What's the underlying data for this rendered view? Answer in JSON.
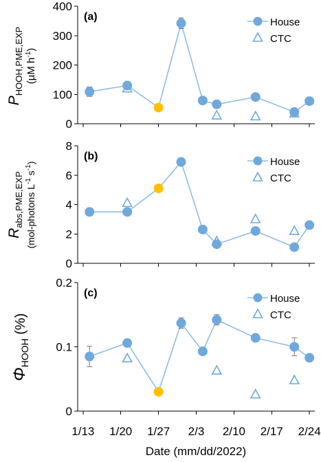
{
  "chart_data": [
    {
      "panel": "(a)",
      "type": "line",
      "ylabel": {
        "sym": "P",
        "sub": "HOOH,PME,EXP",
        "unit_a": "(µM h",
        "unit_sup": "-1",
        "unit_b": ")"
      },
      "ylim": [
        0,
        400
      ],
      "yticks": [
        "0",
        "100",
        "200",
        "300",
        "400"
      ],
      "legend": {
        "house": "House",
        "ctc": "CTC"
      },
      "house": {
        "x": [
          14.2,
          21.2,
          27.0,
          31.2,
          35.2,
          37.8,
          45.0,
          52.2,
          55.0
        ],
        "y": [
          109,
          130,
          55,
          342,
          79,
          66,
          91,
          40,
          77
        ],
        "err": [
          16,
          10,
          0,
          18,
          8,
          6,
          6,
          10,
          4
        ]
      },
      "ctc": {
        "x": [
          21.2,
          37.8,
          45.0,
          52.2
        ],
        "y": [
          120,
          28,
          25,
          35
        ]
      },
      "highlight": {
        "x": 27.0,
        "y": 55
      },
      "colors": {
        "house": "#6fa8dc",
        "line": "#8fbce8",
        "highlight": "#ffc000"
      }
    },
    {
      "panel": "(b)",
      "type": "line",
      "ylabel": {
        "sym": "R",
        "sub": "abs,PME,EXP",
        "unit_a": "(mol-photons L",
        "unit_sup1": "-1",
        "unit_mid": " s",
        "unit_sup2": "-1",
        "unit_b": ")"
      },
      "ylim": [
        0,
        8
      ],
      "yticks": [
        "0",
        "2",
        "4",
        "6",
        "8"
      ],
      "legend": {
        "house": "House",
        "ctc": "CTC"
      },
      "house": {
        "x": [
          14.2,
          21.2,
          27.0,
          31.2,
          35.2,
          37.8,
          45.0,
          52.2,
          55.0
        ],
        "y": [
          3.5,
          3.5,
          5.1,
          6.9,
          2.3,
          1.3,
          2.2,
          1.1,
          2.6
        ],
        "err": [
          0,
          0,
          0,
          0,
          0,
          0,
          0,
          0,
          0
        ]
      },
      "ctc": {
        "x": [
          21.2,
          37.8,
          45.0,
          52.2
        ],
        "y": [
          4.1,
          1.5,
          3.0,
          2.2
        ]
      },
      "highlight": {
        "x": 27.0,
        "y": 5.1
      },
      "colors": {
        "house": "#6fa8dc",
        "line": "#8fbce8",
        "highlight": "#ffc000"
      }
    },
    {
      "panel": "(c)",
      "type": "line",
      "ylabel": {
        "sym": "Φ",
        "sub": "HOOH",
        "unit_a": " (%)"
      },
      "ylim": [
        0,
        0.2
      ],
      "yticks": [
        "0",
        "0.1",
        "0.2"
      ],
      "legend": {
        "house": "House",
        "ctc": "CTC"
      },
      "house": {
        "x": [
          14.2,
          21.2,
          27.0,
          31.2,
          35.2,
          37.8,
          45.0,
          52.2,
          55.0
        ],
        "y": [
          0.085,
          0.106,
          0.03,
          0.137,
          0.093,
          0.142,
          0.114,
          0.1,
          0.083
        ],
        "err": [
          0.016,
          0.004,
          0,
          0.008,
          0.004,
          0.008,
          0.002,
          0.014,
          0.004
        ]
      },
      "ctc": {
        "x": [
          21.2,
          37.8,
          45.0,
          52.2
        ],
        "y": [
          0.082,
          0.063,
          0.026,
          0.048
        ]
      },
      "highlight": {
        "x": 27.0,
        "y": 0.03
      },
      "colors": {
        "house": "#6fa8dc",
        "line": "#8fbce8",
        "highlight": "#ffc000"
      }
    }
  ],
  "x_axis": {
    "xlim": [
      12,
      56
    ],
    "tick_values": [
      13,
      20,
      27,
      34,
      41,
      48,
      55
    ],
    "tick_labels": [
      "1/13",
      "1/20",
      "1/27",
      "2/3",
      "2/10",
      "2/17",
      "2/24"
    ],
    "xlabel": "Date (mm/dd/2022)"
  }
}
